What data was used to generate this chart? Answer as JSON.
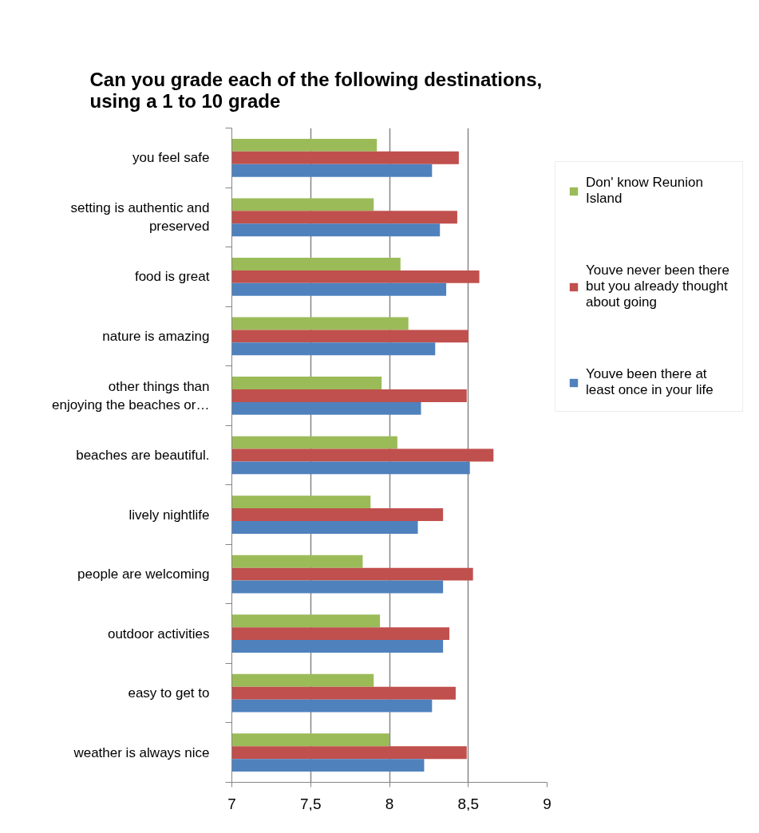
{
  "chart_data": {
    "type": "bar",
    "orientation": "horizontal",
    "title": "Can you grade each of the following destinations, using a 1 to 10 grade",
    "categories": [
      "you feel safe",
      "setting is authentic and preserved",
      "food is great",
      "nature is amazing",
      "other things than enjoying the beaches or…",
      "beaches are beautiful.",
      "lively nightlife",
      "people are welcoming",
      "outdoor activities",
      "easy to get to",
      "weather is always nice"
    ],
    "series": [
      {
        "name": "Don' know Reunion Island",
        "color": "#9bbb59",
        "values": [
          7.92,
          7.9,
          8.07,
          8.12,
          7.95,
          8.05,
          7.88,
          7.83,
          7.94,
          7.9,
          8.0
        ]
      },
      {
        "name": "Youve never been there but you already thought about going",
        "color": "#c0504d",
        "values": [
          8.44,
          8.43,
          8.57,
          8.5,
          8.49,
          8.66,
          8.34,
          8.53,
          8.38,
          8.42,
          8.49
        ]
      },
      {
        "name": "Youve been there at least once in your life",
        "color": "#4f81bd",
        "values": [
          8.27,
          8.32,
          8.36,
          8.29,
          8.2,
          8.51,
          8.18,
          8.34,
          8.34,
          8.27,
          8.22
        ]
      }
    ],
    "xlim": [
      7,
      9
    ],
    "xticks": [
      7,
      {
        "value": 7.5,
        "label": "7,5"
      },
      8,
      {
        "value": 8.5,
        "label": "8,5"
      },
      9
    ],
    "grid": "x",
    "legend": "right"
  }
}
